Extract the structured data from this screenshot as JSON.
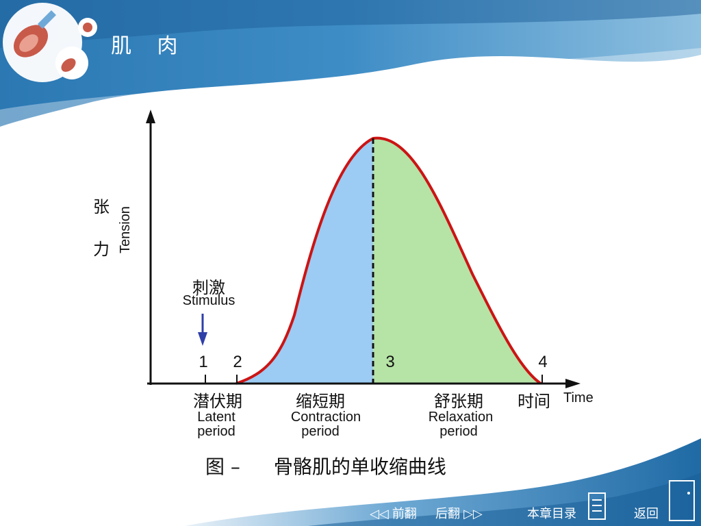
{
  "header": {
    "title": "肌 肉"
  },
  "diagram": {
    "y_axis": {
      "label_cn": "张力",
      "label_en": "Tension"
    },
    "x_axis": {
      "label_cn": "时间",
      "label_en": "Time"
    },
    "stimulus": {
      "label_cn": "刺激",
      "label_en": "Stimulus"
    },
    "points": [
      "1",
      "2",
      "3",
      "4"
    ],
    "phases": [
      {
        "cn": "潜伏期",
        "en1": "Latent",
        "en2": "period"
      },
      {
        "cn": "缩短期",
        "en1": "Contraction",
        "en2": "period"
      },
      {
        "cn": "舒张期",
        "en1": "Relaxation",
        "en2": "period"
      }
    ],
    "caption": {
      "prefix": "图 –",
      "text": "骨骼肌的单收缩曲线"
    },
    "colors": {
      "contraction": "#9ccbf3",
      "relaxation": "#b6e3a6",
      "curve": "#cc1414"
    }
  },
  "nav": {
    "prev": "前翻",
    "next": "后翻",
    "toc": "本章目录",
    "back": "返回"
  }
}
